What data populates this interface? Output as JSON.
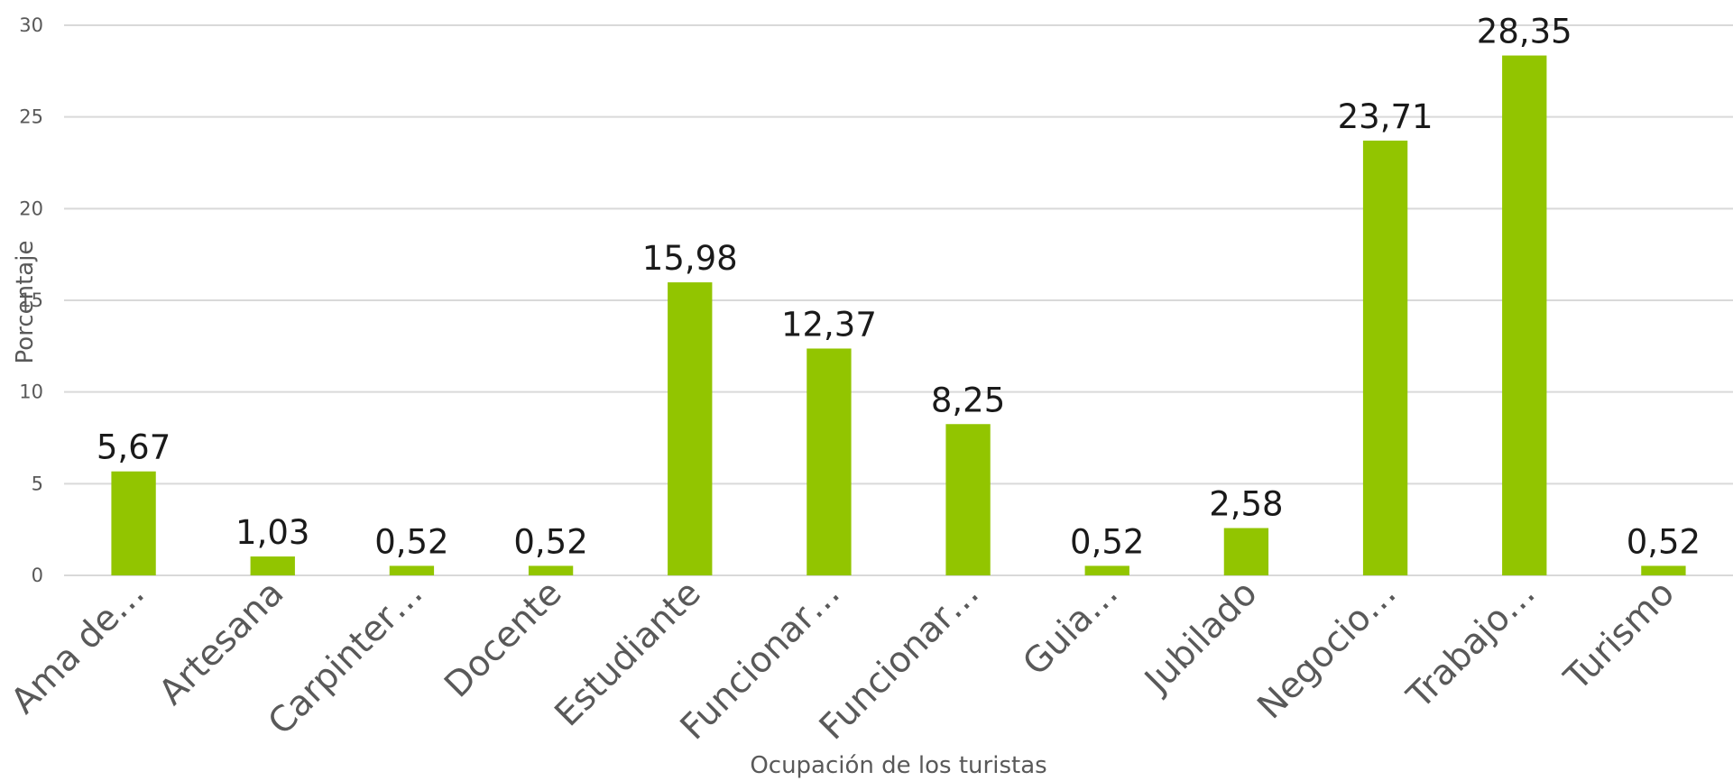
{
  "chart_data": {
    "type": "bar",
    "title": "",
    "xlabel": "Ocupación de los turistas",
    "ylabel": "Porcentaje",
    "ylim": [
      0,
      30
    ],
    "yticks": [
      0,
      5,
      10,
      15,
      20,
      25,
      30
    ],
    "grid": true,
    "legend": "none",
    "bar_color": "#92C500",
    "categories": [
      "Ama de…",
      "Artesana",
      "Carpinter…",
      "Docente",
      "Estudiante",
      "Funcionar…",
      "Funcionar…",
      "Guia…",
      "Jubilado",
      "Negocio…",
      "Trabajo…",
      "Turismo"
    ],
    "values": [
      5.67,
      1.03,
      0.52,
      0.52,
      15.98,
      12.37,
      8.25,
      0.52,
      2.58,
      23.71,
      28.35,
      0.52
    ],
    "data_labels": [
      "5,67",
      "1,03",
      "0,52",
      "0,52",
      "15,98",
      "12,37",
      "8,25",
      "0,52",
      "2,58",
      "23,71",
      "28,35",
      "0,52"
    ]
  }
}
